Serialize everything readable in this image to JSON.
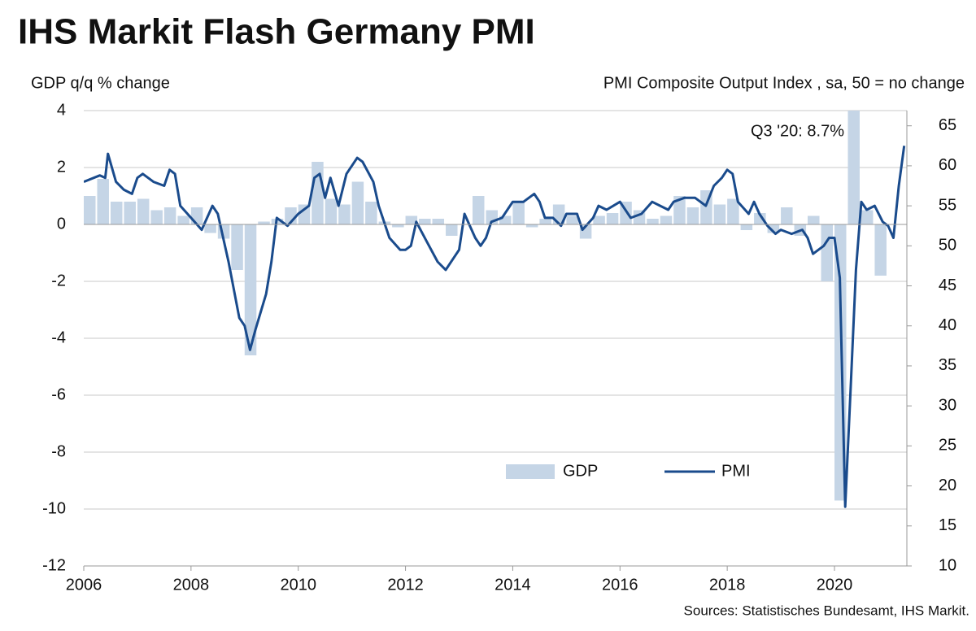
{
  "chart_data": {
    "type": "combo",
    "title": "IHS Markit Flash Germany PMI",
    "y_label": "GDP q/q % change",
    "y2_label": "PMI Composite  Output Index , sa, 50 = no change",
    "annotation": "Q3 '20: 8.7%",
    "source": "Sources: Statistisches Bundesamt, IHS Markit.",
    "xlim": [
      2006,
      2021.35
    ],
    "xticks": [
      2006,
      2008,
      2010,
      2012,
      2014,
      2016,
      2018,
      2020
    ],
    "ylim": [
      -12,
      4
    ],
    "yticks": [
      4,
      2,
      0,
      -2,
      -4,
      -6,
      -8,
      -10,
      -12
    ],
    "y2lim": [
      10,
      66.9
    ],
    "y2ticks": [
      65,
      60,
      55,
      50,
      45,
      40,
      35,
      30,
      25,
      20,
      15,
      10
    ],
    "grid": true,
    "legend": "bottom",
    "series": [
      {
        "name": "GDP",
        "type": "bar",
        "color": "#c5d5e6",
        "x": [
          2006,
          2006.25,
          2006.5,
          2006.75,
          2007,
          2007.25,
          2007.5,
          2007.75,
          2008,
          2008.25,
          2008.5,
          2008.75,
          2009,
          2009.25,
          2009.5,
          2009.75,
          2010,
          2010.25,
          2010.5,
          2010.75,
          2011,
          2011.25,
          2011.5,
          2011.75,
          2012,
          2012.25,
          2012.5,
          2012.75,
          2013,
          2013.25,
          2013.5,
          2013.75,
          2014,
          2014.25,
          2014.5,
          2014.75,
          2015,
          2015.25,
          2015.5,
          2015.75,
          2016,
          2016.25,
          2016.5,
          2016.75,
          2017,
          2017.25,
          2017.5,
          2017.75,
          2018,
          2018.25,
          2018.5,
          2018.75,
          2019,
          2019.25,
          2019.5,
          2019.75,
          2020,
          2020.25,
          2020.5,
          2020.75
        ],
        "values": [
          1.0,
          1.6,
          0.8,
          0.8,
          0.9,
          0.5,
          0.6,
          0.3,
          0.6,
          -0.3,
          -0.5,
          -1.6,
          -4.6,
          0.1,
          0.2,
          0.6,
          0.7,
          2.2,
          0.9,
          0.7,
          1.5,
          0.8,
          0.1,
          -0.1,
          0.3,
          0.2,
          0.2,
          -0.4,
          0.0,
          1.0,
          0.5,
          0.3,
          0.8,
          -0.1,
          0.2,
          0.7,
          0.3,
          -0.5,
          0.3,
          0.4,
          0.8,
          0.5,
          0.2,
          0.3,
          1.0,
          0.6,
          1.2,
          0.7,
          0.9,
          -0.2,
          0.4,
          -0.3,
          0.6,
          -0.4,
          0.3,
          -2.0,
          -9.7,
          8.7,
          0.5,
          -1.8
        ]
      },
      {
        "name": "PMI",
        "type": "line",
        "axis": "y2",
        "color": "#1a4b8c",
        "x": [
          2006,
          2006.3,
          2006.4,
          2006.45,
          2006.6,
          2006.75,
          2006.9,
          2007,
          2007.1,
          2007.3,
          2007.5,
          2007.6,
          2007.7,
          2007.8,
          2008,
          2008.2,
          2008.3,
          2008.4,
          2008.5,
          2008.6,
          2008.7,
          2008.9,
          2009,
          2009.1,
          2009.2,
          2009.4,
          2009.5,
          2009.6,
          2009.8,
          2010,
          2010.2,
          2010.3,
          2010.4,
          2010.5,
          2010.6,
          2010.75,
          2010.9,
          2011.1,
          2011.2,
          2011.4,
          2011.5,
          2011.7,
          2011.9,
          2012,
          2012.1,
          2012.2,
          2012.4,
          2012.6,
          2012.75,
          2012.9,
          2013,
          2013.1,
          2013.3,
          2013.4,
          2013.5,
          2013.6,
          2013.8,
          2014,
          2014.2,
          2014.4,
          2014.5,
          2014.6,
          2014.75,
          2014.9,
          2015,
          2015.2,
          2015.3,
          2015.5,
          2015.6,
          2015.75,
          2016,
          2016.2,
          2016.4,
          2016.6,
          2016.75,
          2016.9,
          2017,
          2017.2,
          2017.4,
          2017.6,
          2017.75,
          2017.9,
          2018,
          2018.1,
          2018.2,
          2018.4,
          2018.5,
          2018.6,
          2018.75,
          2018.9,
          2019,
          2019.2,
          2019.4,
          2019.5,
          2019.6,
          2019.8,
          2019.9,
          2020,
          2020.1,
          2020.2,
          2020.3,
          2020.4,
          2020.5,
          2020.6,
          2020.75,
          2020.9,
          2021,
          2021.1,
          2021.2,
          2021.3
        ],
        "values": [
          58,
          58.8,
          58.5,
          61.5,
          58,
          57,
          56.5,
          58.5,
          59,
          58,
          57.5,
          59.5,
          59,
          55,
          53.5,
          52,
          53.5,
          55,
          54,
          51,
          48,
          41,
          40,
          37,
          39.5,
          44,
          48,
          53.5,
          52.5,
          54,
          55,
          58.5,
          59,
          56,
          58.5,
          55,
          59,
          61,
          60.5,
          58,
          55,
          51,
          49.5,
          49.5,
          50,
          53,
          50.5,
          48,
          47,
          48.5,
          49.5,
          54,
          51,
          50,
          51,
          53,
          53.5,
          55.5,
          55.5,
          56.5,
          55.5,
          53.5,
          53.5,
          52.5,
          54,
          54,
          52,
          53.5,
          55,
          54.5,
          55.5,
          53.5,
          54,
          55.5,
          55,
          54.5,
          55.5,
          56,
          56,
          55,
          57.5,
          58.5,
          59.5,
          59,
          55.5,
          54,
          55.5,
          54,
          52.5,
          51.5,
          52,
          51.5,
          52,
          51,
          49,
          50,
          51,
          51,
          46,
          17.4,
          32,
          47,
          55.5,
          54.5,
          55,
          53,
          52.5,
          51,
          57.5,
          62.5
        ]
      }
    ]
  }
}
